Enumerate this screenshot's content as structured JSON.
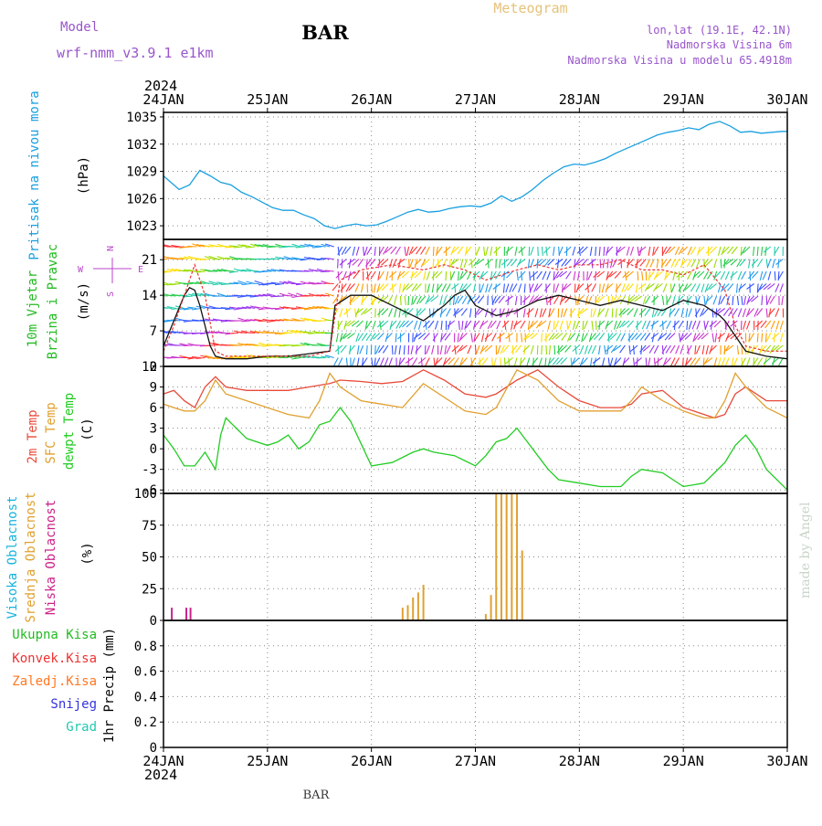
{
  "header": {
    "model_label": "Model",
    "model_name": "wrf-nmm_v3.9.1 e1km",
    "station": "BAR",
    "product": "Meteogram",
    "coords": "lon,lat (19.1E, 42.1N)",
    "elevation": "Nadmorska Visina 6m",
    "model_elevation": "Nadmorska Visina u modelu 65.4918m",
    "year_top": "2024",
    "year_bottom": "2024",
    "footer_station": "BAR",
    "credit": "made by Angel"
  },
  "colors": {
    "pressure": "#19a0e0",
    "wind_label": "#22bb22",
    "compass": "#bb44cc",
    "temp_2m": "#e84a3a",
    "temp_sfc": "#e0a030",
    "dewpoint": "#22cc22",
    "cloud_high": "#18b4dc",
    "cloud_mid": "#e0a030",
    "cloud_low": "#cc2288",
    "rain_total": "#22bb22",
    "rain_conv": "#ee3333",
    "rain_frz": "#ff7722",
    "snow": "#3333dd",
    "hail": "#22c8b0",
    "title_model": "#9955cc",
    "title_product": "#e6c27a",
    "credit": "#c8d4c8"
  },
  "chart_data": [
    {
      "type": "line",
      "panel": "pressure",
      "ylabel": "Pritisak na nivou mora",
      "unit": "(hPa)",
      "ylim": [
        1021.5,
        1035.5
      ],
      "yticks": [
        1023,
        1026,
        1029,
        1032,
        1035
      ],
      "x_categories": [
        "24JAN",
        "25JAN",
        "26JAN",
        "27JAN",
        "28JAN",
        "29JAN",
        "30JAN"
      ],
      "grid": true,
      "series": [
        {
          "color": "pressure",
          "x": [
            0,
            0.05,
            0.1,
            0.15,
            0.25,
            0.35,
            0.45,
            0.55,
            0.65,
            0.75,
            0.85,
            0.95,
            1.05,
            1.15,
            1.25,
            1.35,
            1.45,
            1.55,
            1.65,
            1.75,
            1.85,
            1.95,
            2.05,
            2.15,
            2.25,
            2.35,
            2.45,
            2.55,
            2.65,
            2.75,
            2.85,
            2.95,
            3.05,
            3.15,
            3.25,
            3.35,
            3.45,
            3.55,
            3.65,
            3.75,
            3.85,
            3.95,
            4.05,
            4.15,
            4.25,
            4.35,
            4.45,
            4.55,
            4.65,
            4.75,
            4.85,
            4.95,
            5.05,
            5.15,
            5.25,
            5.35,
            5.45,
            5.55,
            5.65,
            5.75,
            5.85,
            5.95,
            6.0
          ],
          "y": [
            1028.5,
            1028.0,
            1027.5,
            1027.0,
            1027.5,
            1029.1,
            1028.5,
            1027.8,
            1027.5,
            1026.7,
            1026.2,
            1025.6,
            1025.0,
            1024.7,
            1024.7,
            1024.2,
            1023.8,
            1023.0,
            1022.7,
            1023.0,
            1023.2,
            1023.0,
            1023.1,
            1023.5,
            1024.0,
            1024.5,
            1024.8,
            1024.5,
            1024.6,
            1024.9,
            1025.1,
            1025.2,
            1025.1,
            1025.5,
            1026.3,
            1025.7,
            1026.2,
            1027.0,
            1028.0,
            1028.8,
            1029.5,
            1029.8,
            1029.7,
            1030.0,
            1030.4,
            1031.0,
            1031.5,
            1032.0,
            1032.5,
            1033.0,
            1033.3,
            1033.5,
            1033.8,
            1033.6,
            1034.2,
            1034.5,
            1034.0,
            1033.3,
            1033.4,
            1033.2,
            1033.3,
            1033.4,
            1033.4
          ]
        }
      ]
    },
    {
      "type": "line",
      "panel": "wind",
      "ylabel_line1": "10m Vjetar",
      "ylabel_line2": "Brzina i Pravac",
      "unit": "(m/s)",
      "compass_labels": [
        "N",
        "E",
        "S",
        "W"
      ],
      "ylim": [
        0,
        25
      ],
      "yticks": [
        0,
        7,
        14,
        21
      ],
      "grid": true,
      "barbs_note": "dense multicoloured wind barbs along the panel",
      "series": [
        {
          "color": "#111111",
          "x": [
            0,
            0.1,
            0.2,
            0.25,
            0.3,
            0.35,
            0.4,
            0.45,
            0.5,
            0.6,
            0.8,
            1.0,
            1.2,
            1.4,
            1.6,
            1.65,
            1.8,
            2.0,
            2.2,
            2.5,
            2.7,
            2.8,
            2.9,
            3.0,
            3.2,
            3.4,
            3.6,
            3.8,
            4.0,
            4.2,
            4.4,
            4.6,
            4.8,
            5.0,
            5.2,
            5.35,
            5.4,
            5.5,
            5.6,
            5.8,
            6.0
          ],
          "y": [
            4,
            9,
            14,
            15.5,
            15,
            12,
            8,
            4,
            2,
            1.5,
            1.5,
            2,
            2,
            2.5,
            3,
            12,
            14,
            14,
            12,
            9,
            12,
            14,
            15,
            12,
            10,
            11,
            13,
            14,
            13,
            12,
            13,
            12,
            11,
            13,
            12,
            10,
            9,
            6,
            3,
            2,
            1.5
          ]
        },
        {
          "color": "#ee3333",
          "x": [
            0,
            0.1,
            0.2,
            0.3,
            0.4,
            0.5,
            0.6,
            0.8,
            1.0,
            1.2,
            1.4,
            1.6,
            1.7,
            1.9,
            2.2,
            2.5,
            2.7,
            2.9,
            3.1,
            3.4,
            3.6,
            3.8,
            4.0,
            4.2,
            4.4,
            4.6,
            4.8,
            5.0,
            5.2,
            5.4,
            5.5,
            5.6,
            5.8,
            6.0
          ],
          "y": [
            3,
            8,
            14,
            20,
            14,
            3,
            2,
            2,
            2,
            2,
            2,
            3,
            17,
            19,
            20,
            19,
            20,
            19,
            17,
            19,
            20,
            19,
            20,
            20,
            21,
            19,
            19,
            18,
            20,
            15,
            8,
            4,
            3,
            3
          ]
        }
      ]
    },
    {
      "type": "line",
      "panel": "temperature",
      "labels": [
        "2m Temp",
        "SFC Temp",
        "dewpt Temp"
      ],
      "unit": "(C)",
      "ylim": [
        -6.5,
        12
      ],
      "yticks": [
        -6,
        -3,
        0,
        3,
        6,
        9,
        12
      ],
      "grid": true,
      "series": [
        {
          "name": "2m Temp",
          "color": "temp_2m",
          "x": [
            0,
            0.1,
            0.2,
            0.3,
            0.4,
            0.5,
            0.6,
            0.8,
            1.0,
            1.2,
            1.4,
            1.6,
            1.7,
            1.9,
            2.1,
            2.3,
            2.5,
            2.7,
            2.9,
            3.1,
            3.2,
            3.4,
            3.6,
            3.8,
            4.0,
            4.2,
            4.4,
            4.5,
            4.6,
            4.8,
            5.0,
            5.2,
            5.3,
            5.4,
            5.5,
            5.6,
            5.8,
            6.0
          ],
          "y": [
            8,
            8.5,
            7,
            6,
            9,
            10.5,
            9,
            8.5,
            8.5,
            8.5,
            9,
            9.5,
            10,
            9.8,
            9.5,
            9.8,
            11.5,
            10,
            8,
            7.5,
            8,
            10,
            11.5,
            9,
            7,
            6,
            6,
            6.5,
            8,
            8.5,
            6,
            5,
            4.5,
            5,
            8,
            9,
            7,
            7
          ]
        },
        {
          "name": "SFC Temp",
          "color": "temp_sfc",
          "x": [
            0,
            0.1,
            0.2,
            0.3,
            0.4,
            0.5,
            0.6,
            0.8,
            1.0,
            1.2,
            1.4,
            1.5,
            1.6,
            1.7,
            1.9,
            2.1,
            2.3,
            2.5,
            2.7,
            2.9,
            3.1,
            3.2,
            3.4,
            3.6,
            3.8,
            4.0,
            4.2,
            4.4,
            4.5,
            4.6,
            4.8,
            5.0,
            5.2,
            5.3,
            5.4,
            5.5,
            5.6,
            5.8,
            6.0
          ],
          "y": [
            6.5,
            6,
            5.5,
            5.5,
            7,
            10,
            8,
            7,
            6,
            5,
            4.5,
            7,
            11,
            9,
            7,
            6.5,
            6,
            9.5,
            7.5,
            5.5,
            5,
            6,
            11.5,
            10,
            7,
            5.5,
            5.5,
            5.5,
            7,
            9,
            7,
            5.5,
            4.5,
            4.5,
            7,
            11,
            9,
            6,
            4.5
          ]
        },
        {
          "name": "dewpt Temp",
          "color": "dewpoint",
          "x": [
            0,
            0.1,
            0.2,
            0.3,
            0.4,
            0.5,
            0.55,
            0.6,
            0.7,
            0.8,
            1.0,
            1.1,
            1.2,
            1.3,
            1.4,
            1.5,
            1.6,
            1.7,
            1.8,
            2.0,
            2.2,
            2.4,
            2.5,
            2.6,
            2.8,
            3.0,
            3.1,
            3.2,
            3.3,
            3.4,
            3.5,
            3.6,
            3.7,
            3.8,
            4.0,
            4.2,
            4.4,
            4.5,
            4.6,
            4.8,
            5.0,
            5.2,
            5.3,
            5.4,
            5.5,
            5.6,
            5.7,
            5.8,
            6.0
          ],
          "y": [
            2,
            0,
            -2.5,
            -2.5,
            -0.5,
            -3,
            2,
            4.5,
            3,
            1.5,
            0.5,
            1,
            2,
            0,
            1,
            3.5,
            4,
            6,
            4,
            -2.5,
            -2,
            -0.5,
            0,
            -0.5,
            -1,
            -2.5,
            -1,
            1,
            1.5,
            3,
            1,
            -1,
            -3,
            -4.5,
            -5,
            -5.5,
            -5.5,
            -4,
            -3,
            -3.5,
            -5.5,
            -5,
            -3.5,
            -2,
            0.5,
            2,
            0,
            -3,
            -6
          ]
        }
      ]
    },
    {
      "type": "bar",
      "panel": "clouds",
      "labels": [
        "Visoka Oblacnost",
        "Srednja Oblacnost",
        "Niska Oblacnost"
      ],
      "unit": "(%)",
      "ylim": [
        0,
        100
      ],
      "yticks": [
        0,
        25,
        50,
        75,
        100
      ],
      "grid": true,
      "series": [
        {
          "name": "Niska Oblacnost",
          "color": "cloud_low",
          "x": [
            0.08,
            0.22,
            0.26
          ],
          "values": [
            10,
            10,
            10
          ]
        },
        {
          "name": "Srednja Oblacnost",
          "color": "cloud_mid",
          "x": [
            2.3,
            2.35,
            2.4,
            2.45,
            2.5,
            3.1,
            3.15,
            3.2,
            3.25,
            3.3,
            3.35,
            3.4,
            3.45
          ],
          "values": [
            10,
            12,
            18,
            22,
            28,
            5,
            20,
            100,
            100,
            100,
            100,
            100,
            55
          ]
        }
      ]
    },
    {
      "type": "bar",
      "panel": "precip",
      "labels": [
        "Ukupna Kisa",
        "Konvek.Kisa",
        "Zaledj.Kisa",
        "Snijeg",
        "Grad"
      ],
      "unit": "1hr Precip (mm)",
      "ylim": [
        0,
        1
      ],
      "yticks": [
        0,
        0.2,
        0.4,
        0.6,
        0.8
      ],
      "grid": true,
      "x_categories": [
        "24JAN",
        "25JAN",
        "26JAN",
        "27JAN",
        "28JAN",
        "29JAN",
        "30JAN"
      ],
      "series": []
    }
  ]
}
